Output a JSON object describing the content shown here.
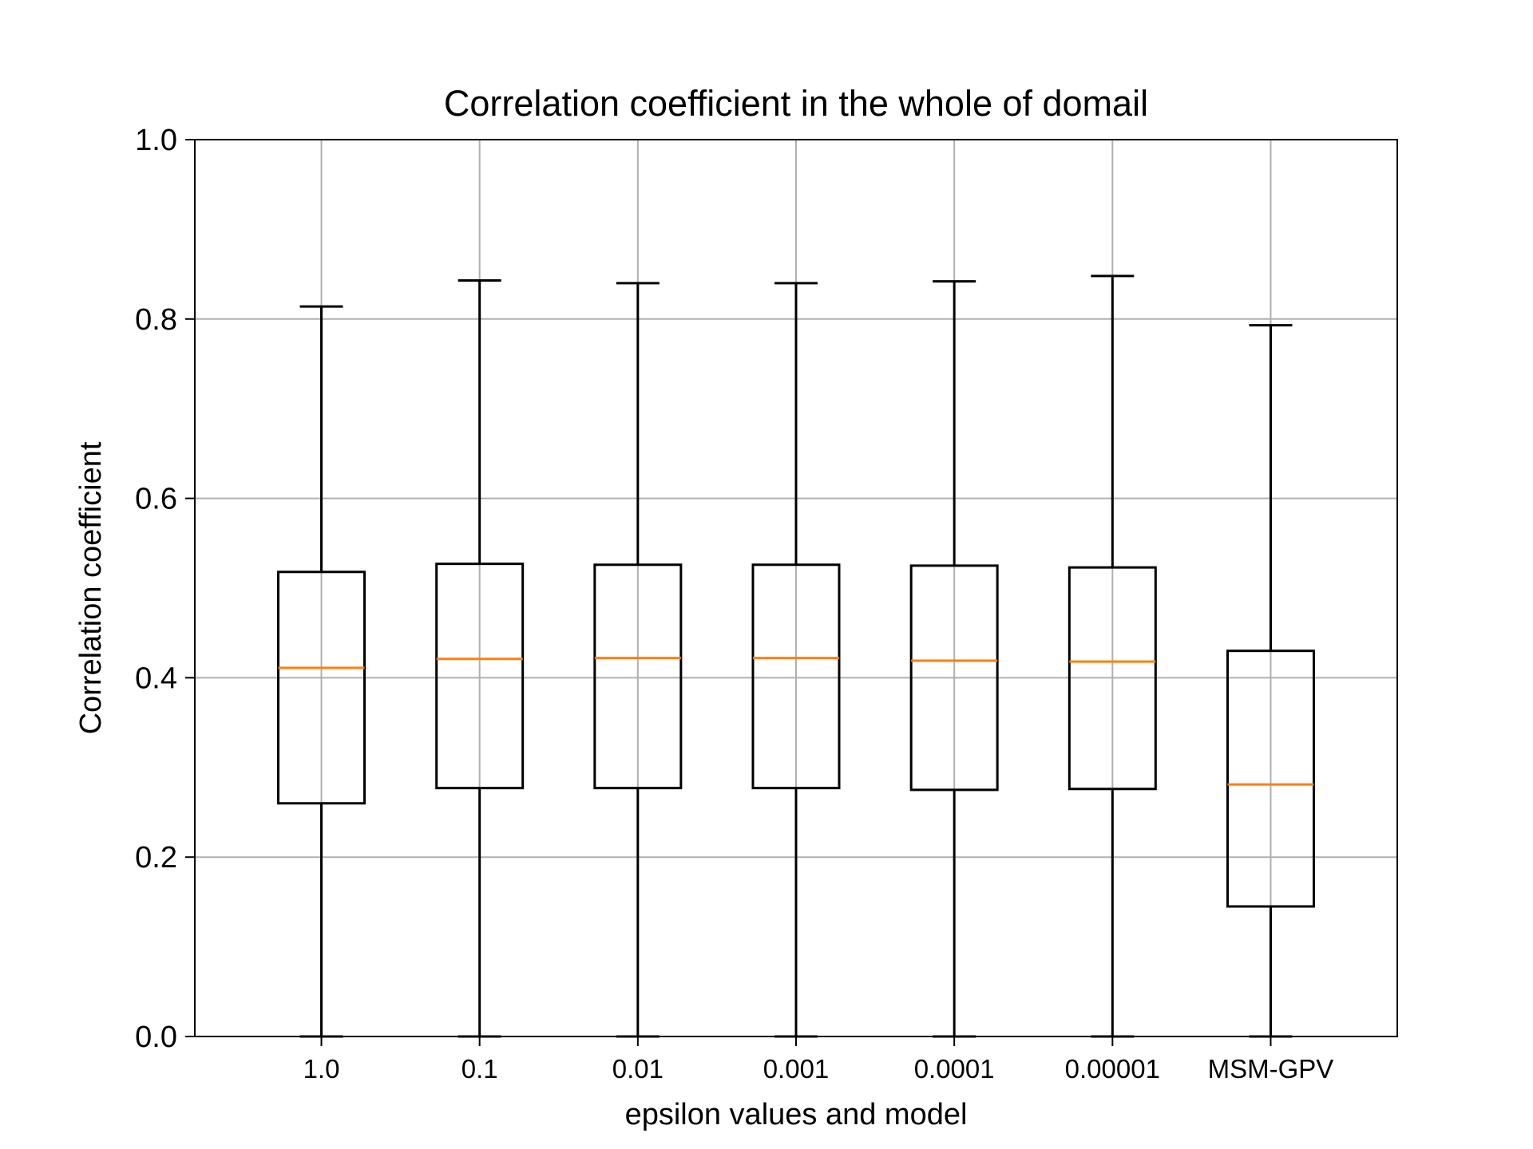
{
  "chart_data": {
    "type": "box",
    "title": "Correlation coefficient in the whole of domail",
    "xlabel": "epsilon values and model",
    "ylabel": "Correlation coefficient",
    "ylim": [
      0.0,
      1.0
    ],
    "y_ticks": [
      "0.0",
      "0.2",
      "0.4",
      "0.6",
      "0.8",
      "1.0"
    ],
    "grid": true,
    "categories": [
      "1.0",
      "0.1",
      "0.01",
      "0.001",
      "0.0001",
      "0.00001",
      "MSM-GPV"
    ],
    "boxes": [
      {
        "category": "1.0",
        "whisker_low": 0.0,
        "q1": 0.26,
        "median": 0.411,
        "q3": 0.518,
        "whisker_high": 0.814
      },
      {
        "category": "0.1",
        "whisker_low": 0.0,
        "q1": 0.277,
        "median": 0.421,
        "q3": 0.527,
        "whisker_high": 0.843
      },
      {
        "category": "0.01",
        "whisker_low": 0.0,
        "q1": 0.277,
        "median": 0.422,
        "q3": 0.526,
        "whisker_high": 0.84
      },
      {
        "category": "0.001",
        "whisker_low": 0.0,
        "q1": 0.277,
        "median": 0.422,
        "q3": 0.526,
        "whisker_high": 0.84
      },
      {
        "category": "0.0001",
        "whisker_low": 0.0,
        "q1": 0.275,
        "median": 0.419,
        "q3": 0.525,
        "whisker_high": 0.842
      },
      {
        "category": "0.00001",
        "whisker_low": 0.0,
        "q1": 0.276,
        "median": 0.418,
        "q3": 0.523,
        "whisker_high": 0.848
      },
      {
        "category": "MSM-GPV",
        "whisker_low": 0.0,
        "q1": 0.145,
        "median": 0.281,
        "q3": 0.43,
        "whisker_high": 0.793
      }
    ],
    "colors": {
      "box": "#000000",
      "median": "#ff7f0e",
      "grid": "#b0b0b0",
      "axes": "#000000"
    }
  }
}
